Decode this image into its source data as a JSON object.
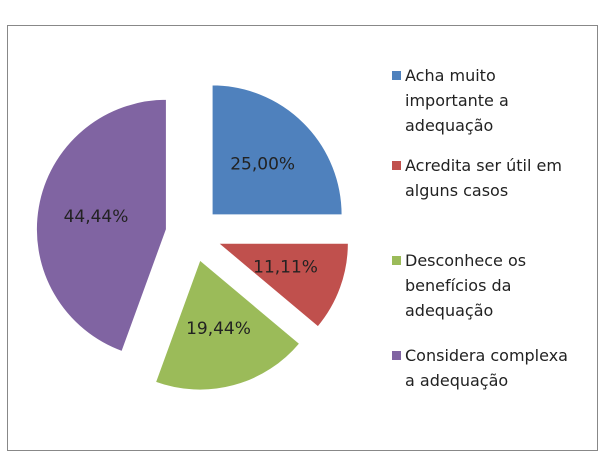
{
  "chart_data": {
    "type": "pie",
    "categories": [
      "Acha muito importante a adequação",
      "Acredita ser útil em alguns casos",
      "Desconhece os benefícios da adequação",
      "Considera complexa a adequação"
    ],
    "values": [
      25,
      11.11,
      19.44,
      44.44
    ],
    "value_labels": [
      "25,00%",
      "11,11%",
      "19,44%",
      "44,44%"
    ],
    "colors": [
      "#4f81bd",
      "#c0504d",
      "#9bbb59",
      "#8064a2"
    ],
    "legend": "right"
  }
}
